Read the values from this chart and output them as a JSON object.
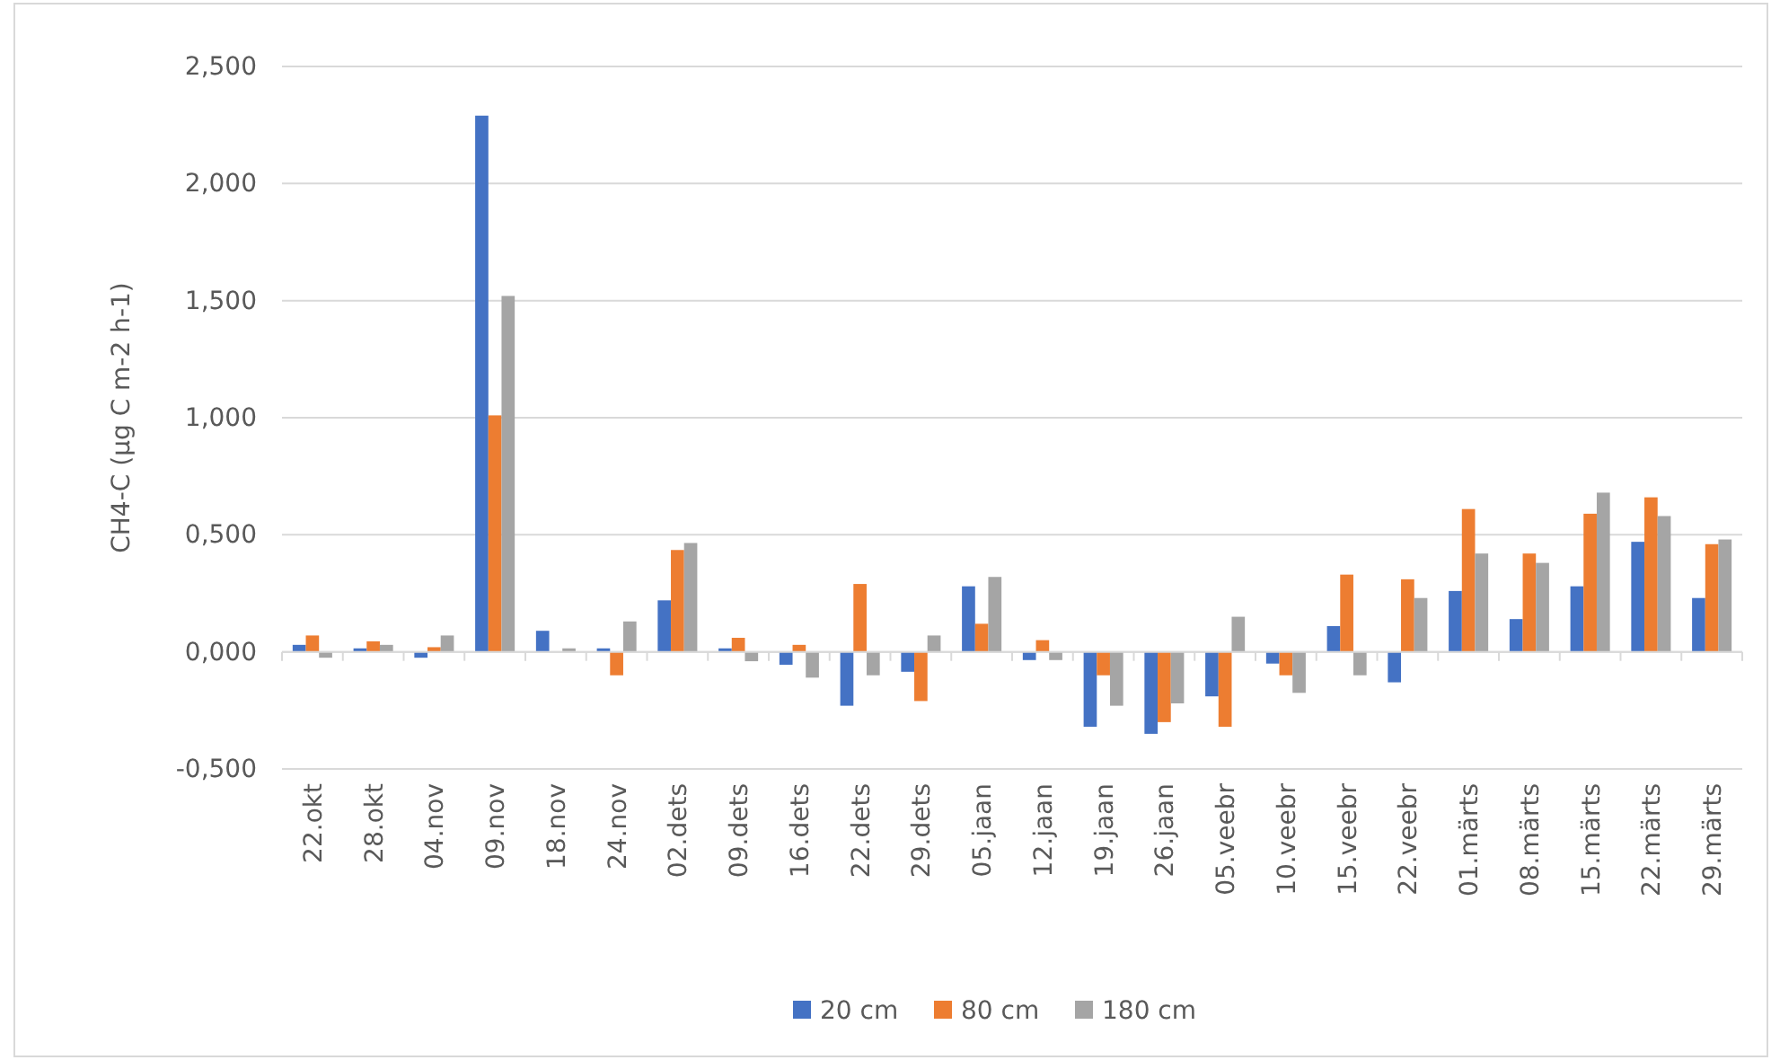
{
  "chart_data": {
    "type": "bar",
    "ylabel": "CH4-C (µg C m-2 h-1)",
    "categories": [
      "22.okt",
      "28.okt",
      "04.nov",
      "09.nov",
      "18.nov",
      "24.nov",
      "02.dets",
      "09.dets",
      "16.dets",
      "22.dets",
      "29.dets",
      "05.jaan",
      "12.jaan",
      "19.jaan",
      "26.jaan",
      "05.veebr",
      "10.veebr",
      "15.veebr",
      "22.veebr",
      "01.märts",
      "08.märts",
      "15.märts",
      "22.märts",
      "29.märts"
    ],
    "series": [
      {
        "name": "20 cm",
        "color": "#4472c4",
        "values": [
          0.03,
          0.015,
          -0.025,
          2.29,
          0.09,
          0.015,
          0.22,
          0.015,
          -0.055,
          -0.23,
          -0.085,
          0.28,
          -0.035,
          -0.32,
          -0.35,
          -0.19,
          -0.05,
          0.11,
          -0.13,
          0.26,
          0.14,
          0.28,
          0.47,
          0.23
        ]
      },
      {
        "name": "80 cm",
        "color": "#ed7d31",
        "values": [
          0.07,
          0.045,
          0.02,
          1.01,
          0,
          -0.1,
          0.435,
          0.06,
          0.03,
          0.29,
          -0.21,
          0.12,
          0.05,
          -0.1,
          -0.3,
          -0.32,
          -0.1,
          0.33,
          0.31,
          0.61,
          0.42,
          0.59,
          0.66,
          0.46
        ]
      },
      {
        "name": "180 cm",
        "color": "#a5a5a5",
        "values": [
          -0.025,
          0.03,
          0.07,
          1.52,
          0.015,
          0.13,
          0.465,
          -0.04,
          -0.11,
          -0.1,
          0.07,
          0.32,
          -0.035,
          -0.23,
          -0.22,
          0.15,
          -0.175,
          -0.1,
          0.23,
          0.42,
          0.38,
          0.68,
          0.58,
          0.48
        ]
      }
    ],
    "ylim": [
      -0.5,
      2.5
    ],
    "yticks": [
      {
        "value": -0.5,
        "label": "-0,500"
      },
      {
        "value": 0,
        "label": "0,000"
      },
      {
        "value": 0.5,
        "label": "0,500"
      },
      {
        "value": 1,
        "label": "1,000"
      },
      {
        "value": 1.5,
        "label": "1,500"
      },
      {
        "value": 2,
        "label": "2,000"
      },
      {
        "value": 2.5,
        "label": "2,500"
      }
    ],
    "grid": "y",
    "legend": "bottom"
  }
}
